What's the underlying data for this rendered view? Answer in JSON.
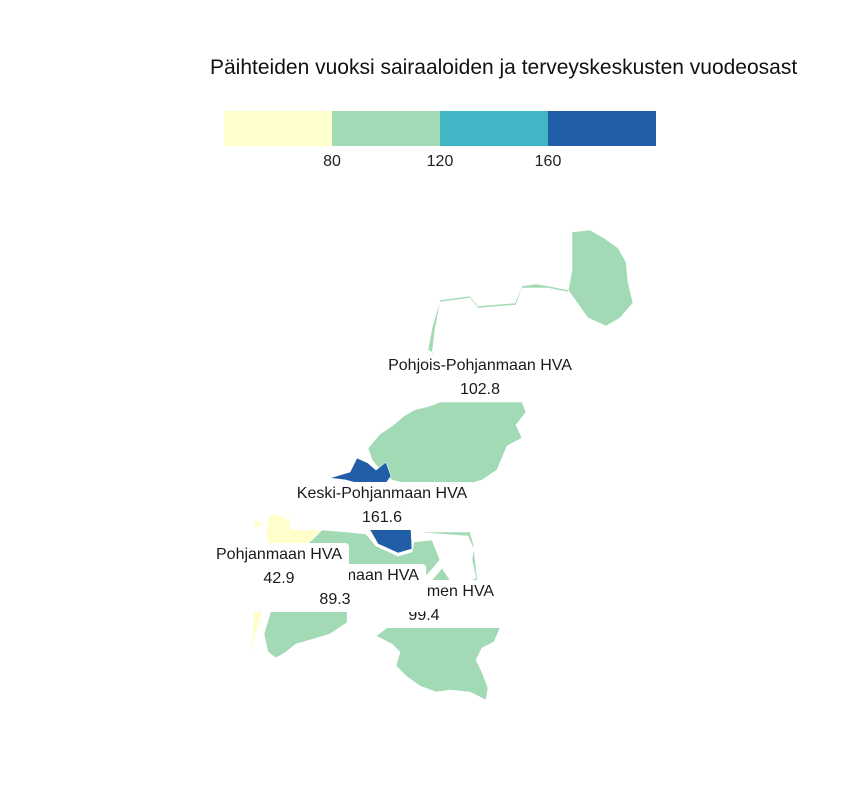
{
  "map": {
    "title": "Päihteiden vuoksi sairaaloiden ja terveyskeskusten vuodeosast",
    "legend": {
      "ticks": [
        "80",
        "120",
        "160"
      ],
      "colors": [
        "#ffffcc",
        "#a1dab4",
        "#41b6c4",
        "#225ea8"
      ]
    },
    "regions": [
      {
        "name": "Pohjois-Pohjanmaan HVA",
        "value": "102.8",
        "color": "#a1dab4"
      },
      {
        "name": "Keski-Pohjanmaan HVA",
        "value": "161.6",
        "color": "#225ea8"
      },
      {
        "name": "Pohjanmaan HVA",
        "value": "42.9",
        "color": "#ffffcc"
      },
      {
        "name": "Etelä-Pohjanmaan HVA",
        "value": "89.3",
        "color": "#a1dab4"
      },
      {
        "name": "Keski-Suomen HVA",
        "value": "99.4",
        "color": "#a1dab4"
      }
    ]
  }
}
